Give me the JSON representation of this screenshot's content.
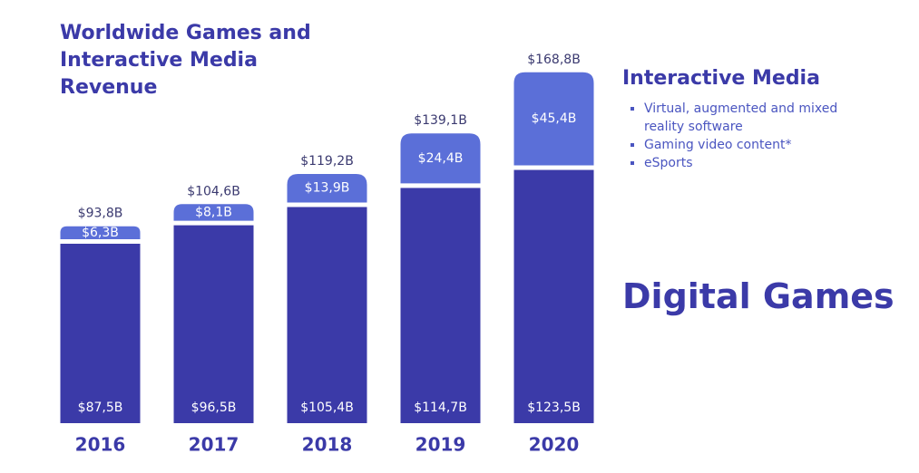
{
  "chart_data": {
    "type": "stacked-bar",
    "title": "Worldwide Games and Interactive Media Revenue",
    "categories": [
      "2016",
      "2017",
      "2018",
      "2019",
      "2020"
    ],
    "series": [
      {
        "name": "Digital Games",
        "color": "#3b3aa8",
        "values": [
          87.5,
          96.5,
          105.4,
          114.7,
          123.5
        ],
        "value_labels": [
          "$87,5B",
          "$96,5B",
          "$105,4B",
          "$114,7B",
          "$123,5B"
        ]
      },
      {
        "name": "Interactive Media",
        "color": "#5b6fd8",
        "values": [
          6.3,
          8.1,
          13.9,
          24.4,
          45.4
        ],
        "value_labels": [
          "$6,3B",
          "$8,1B",
          "$13,9B",
          "$24,4B",
          "$45,4B"
        ],
        "items": [
          "Virtual, augmented and mixed reality software",
          "Gaming video content*",
          "eSports"
        ]
      }
    ],
    "totals": {
      "values": [
        93.8,
        104.6,
        119.2,
        139.1,
        168.8
      ],
      "value_labels": [
        "$93,8B",
        "$104,6B",
        "$119,2B",
        "$139,1B",
        "$168,8B"
      ]
    }
  }
}
